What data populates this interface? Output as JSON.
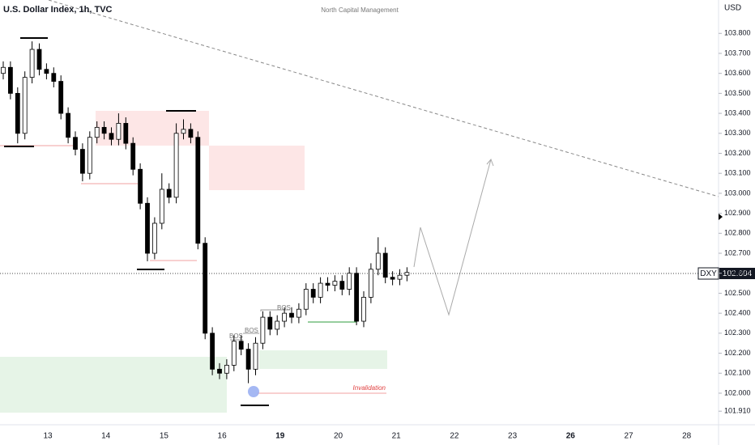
{
  "chart_data": {
    "type": "candlestick",
    "title": "U.S. Dollar Index, 1h, TVC",
    "watermark": "North Capital Management",
    "currency": "USD",
    "symbol": "DXY",
    "categories": [
      "13",
      "14",
      "15",
      "16",
      "19",
      "20",
      "21",
      "22",
      "23",
      "26",
      "27",
      "28"
    ],
    "candles": {
      "open": [
        103.6,
        103.63,
        103.5,
        103.3,
        103.58,
        103.72,
        103.62,
        103.6,
        103.56,
        103.4,
        103.28,
        103.22,
        103.1,
        103.28,
        103.33,
        103.3,
        103.27,
        103.35,
        103.25,
        103.12,
        102.95,
        102.7,
        102.85,
        103.02,
        102.98,
        103.3,
        103.32,
        103.28,
        102.75,
        102.3,
        102.12,
        102.1,
        102.14,
        102.26,
        102.22,
        102.12,
        102.25,
        102.38,
        102.32,
        102.36,
        102.4,
        102.38,
        102.42,
        102.52,
        102.48,
        102.55,
        102.54,
        102.56,
        102.52,
        102.6,
        102.36,
        102.48,
        102.62,
        102.7,
        102.58,
        102.57,
        102.59
      ],
      "high": [
        103.66,
        103.66,
        103.53,
        103.61,
        103.76,
        103.75,
        103.65,
        103.63,
        103.59,
        103.43,
        103.31,
        103.25,
        103.31,
        103.36,
        103.36,
        103.33,
        103.4,
        103.38,
        103.28,
        103.15,
        102.98,
        102.88,
        103.1,
        103.05,
        103.35,
        103.37,
        103.35,
        103.31,
        102.78,
        102.33,
        102.15,
        102.17,
        102.29,
        102.29,
        102.25,
        102.28,
        102.41,
        102.41,
        102.39,
        102.43,
        102.43,
        102.45,
        102.55,
        102.55,
        102.58,
        102.58,
        102.59,
        102.59,
        102.63,
        102.63,
        102.51,
        102.65,
        102.78,
        102.73,
        102.61,
        102.62,
        102.63
      ],
      "low": [
        103.57,
        103.47,
        103.25,
        103.27,
        103.55,
        103.59,
        103.57,
        103.53,
        103.37,
        103.25,
        103.19,
        103.06,
        103.07,
        103.25,
        103.27,
        103.24,
        103.24,
        103.22,
        103.09,
        102.92,
        102.66,
        102.67,
        102.82,
        102.95,
        102.95,
        103.27,
        103.25,
        102.72,
        102.27,
        102.09,
        102.07,
        102.07,
        102.11,
        102.19,
        102.05,
        102.09,
        102.22,
        102.29,
        102.29,
        102.33,
        102.35,
        102.35,
        102.39,
        102.45,
        102.45,
        102.51,
        102.51,
        102.49,
        102.49,
        102.34,
        102.33,
        102.45,
        102.59,
        102.55,
        102.54,
        102.54,
        102.56
      ],
      "close": [
        103.63,
        103.5,
        103.3,
        103.58,
        103.72,
        103.62,
        103.6,
        103.56,
        103.4,
        103.28,
        103.22,
        103.1,
        103.28,
        103.33,
        103.3,
        103.27,
        103.35,
        103.25,
        103.12,
        102.95,
        102.7,
        102.85,
        103.02,
        102.98,
        103.3,
        103.32,
        103.28,
        102.75,
        102.3,
        102.12,
        102.1,
        102.14,
        102.26,
        102.22,
        102.12,
        102.25,
        102.38,
        102.32,
        102.36,
        102.4,
        102.38,
        102.42,
        102.52,
        102.48,
        102.55,
        102.54,
        102.56,
        102.52,
        102.6,
        102.36,
        102.48,
        102.62,
        102.7,
        102.58,
        102.57,
        102.59,
        102.604
      ]
    },
    "up_color": "#ffffff",
    "down_color": "#000000",
    "ylim": [
      101.842,
      103.967
    ],
    "yticks": [
      {
        "value": 101.91,
        "label": "101.910"
      },
      {
        "value": 102,
        "label": "102.000"
      },
      {
        "value": 102.1,
        "label": "102.100"
      },
      {
        "value": 102.2,
        "label": "102.200"
      },
      {
        "value": 102.3,
        "label": "102.300"
      },
      {
        "value": 102.4,
        "label": "102.400"
      },
      {
        "value": 102.5,
        "label": "102.500"
      },
      {
        "value": 102.6,
        "label": "102.600"
      },
      {
        "value": 102.7,
        "label": "102.700"
      },
      {
        "value": 102.8,
        "label": "102.800"
      },
      {
        "value": 102.9,
        "label": "102.900"
      },
      {
        "value": 103,
        "label": "103.000"
      },
      {
        "value": 103.1,
        "label": "103.100"
      },
      {
        "value": 103.2,
        "label": "103.200"
      },
      {
        "value": 103.3,
        "label": "103.300"
      },
      {
        "value": 103.4,
        "label": "103.400"
      },
      {
        "value": 103.5,
        "label": "103.500"
      },
      {
        "value": 103.6,
        "label": "103.600"
      },
      {
        "value": 103.7,
        "label": "103.700"
      },
      {
        "value": 103.8,
        "label": "103.800"
      }
    ],
    "annotations": [
      "BOS",
      "BOS",
      "BOS",
      "Invalidation"
    ]
  }
}
